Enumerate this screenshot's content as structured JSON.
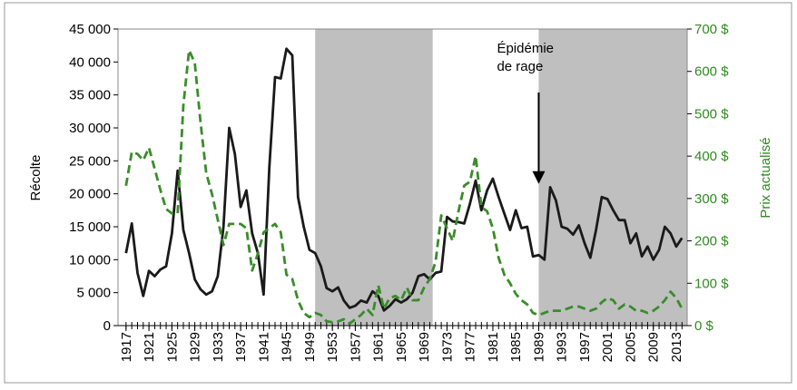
{
  "chart_data": {
    "type": "line",
    "x": [
      1917,
      1918,
      1919,
      1920,
      1921,
      1922,
      1923,
      1924,
      1925,
      1926,
      1927,
      1928,
      1929,
      1930,
      1931,
      1932,
      1933,
      1934,
      1935,
      1936,
      1937,
      1938,
      1939,
      1940,
      1941,
      1942,
      1943,
      1944,
      1945,
      1946,
      1947,
      1948,
      1949,
      1950,
      1951,
      1952,
      1953,
      1954,
      1955,
      1956,
      1957,
      1958,
      1959,
      1960,
      1961,
      1962,
      1963,
      1964,
      1965,
      1966,
      1967,
      1968,
      1969,
      1970,
      1971,
      1972,
      1973,
      1974,
      1975,
      1976,
      1977,
      1978,
      1979,
      1980,
      1981,
      1982,
      1983,
      1984,
      1985,
      1986,
      1987,
      1988,
      1989,
      1990,
      1991,
      1992,
      1993,
      1994,
      1995,
      1996,
      1997,
      1998,
      1999,
      2000,
      2001,
      2002,
      2003,
      2004,
      2005,
      2006,
      2007,
      2008,
      2009,
      2010,
      2011,
      2012,
      2013,
      2014
    ],
    "series": [
      {
        "color": "#1a1a1a",
        "values": [
          11000,
          15500,
          8000,
          4500,
          8300,
          7500,
          8500,
          9000,
          14000,
          23500,
          14500,
          11000,
          7000,
          5500,
          4700,
          5200,
          7500,
          15000,
          30000,
          26000,
          18000,
          20500,
          14000,
          11000,
          4700,
          24000,
          37700,
          37500,
          42000,
          41000,
          19500,
          15000,
          11500,
          11000,
          9000,
          5700,
          5200,
          5800,
          3800,
          2700,
          3000,
          3800,
          3500,
          5200,
          4500,
          2300,
          3000,
          4000,
          3500,
          4000,
          5000,
          7500,
          7800,
          7000,
          8000,
          8200,
          16500,
          15800,
          15700,
          15500,
          18500,
          22000,
          17500,
          20500,
          22300,
          19500,
          17000,
          14500,
          17500,
          14800,
          15000,
          10500,
          10700,
          10000,
          21000,
          19000,
          15000,
          14700,
          13800,
          15200,
          12500,
          10300,
          14500,
          19500,
          19200,
          17500,
          16000,
          16000,
          12500,
          14000,
          10500,
          12000,
          10000,
          11500,
          15000,
          14000,
          12000,
          13300
        ]
      },
      {
        "color": "#3a8c2a",
        "axis": "y2",
        "dashed": true,
        "values": [
          330,
          410,
          405,
          390,
          420,
          370,
          320,
          275,
          265,
          265,
          520,
          650,
          620,
          480,
          360,
          310,
          250,
          190,
          240,
          240,
          240,
          230,
          130,
          170,
          220,
          230,
          240,
          220,
          120,
          110,
          60,
          30,
          20,
          30,
          25,
          10,
          8,
          10,
          15,
          5,
          15,
          25,
          40,
          25,
          95,
          40,
          65,
          70,
          60,
          90,
          60,
          60,
          90,
          110,
          150,
          260,
          230,
          200,
          270,
          330,
          340,
          400,
          280,
          270,
          230,
          160,
          120,
          100,
          75,
          60,
          50,
          30,
          25,
          30,
          35,
          35,
          35,
          40,
          45,
          45,
          40,
          35,
          40,
          55,
          65,
          60,
          40,
          50,
          45,
          35,
          35,
          30,
          35,
          45,
          60,
          80,
          65,
          40
        ]
      }
    ],
    "xlim": [
      1915.6,
      2014.9
    ],
    "xticks": [
      1917,
      1921,
      1925,
      1929,
      1933,
      1937,
      1941,
      1945,
      1949,
      1953,
      1957,
      1961,
      1965,
      1969,
      1973,
      1977,
      1981,
      1985,
      1989,
      1993,
      1997,
      2001,
      2005,
      2009,
      2013
    ],
    "ylim": [
      0,
      45000
    ],
    "yticks": [
      0,
      {
        "value": 5000,
        "label": "5 000"
      },
      {
        "value": 10000,
        "label": "10 000"
      },
      {
        "value": 15000,
        "label": "15 000"
      },
      {
        "value": 20000,
        "label": "20 000"
      },
      {
        "value": 25000,
        "label": "25 000"
      },
      {
        "value": 30000,
        "label": "30 000"
      },
      {
        "value": 35000,
        "label": "35 000"
      },
      {
        "value": 40000,
        "label": "40 000"
      },
      {
        "value": 45000,
        "label": "45 000"
      }
    ],
    "y2lim": [
      0,
      700
    ],
    "y2ticks": [
      {
        "value": 0,
        "label": "0 $"
      },
      {
        "value": 100,
        "label": "100 $"
      },
      {
        "value": 200,
        "label": "200 $"
      },
      {
        "value": 300,
        "label": "300 $"
      },
      {
        "value": 400,
        "label": "400 $"
      },
      {
        "value": 500,
        "label": "500 $"
      },
      {
        "value": 600,
        "label": "600 $"
      },
      {
        "value": 700,
        "label": "700 $"
      }
    ],
    "y2_color": "#2e8b1e",
    "ylabel": "Récolte",
    "y2label": "Prix actualisé",
    "shaded_ranges": [
      [
        1950,
        1970.5
      ],
      [
        1989,
        2014.9
      ]
    ],
    "shade_color": "#bfbfbf",
    "annotation": {
      "lines": [
        "Épidémie",
        "de rage"
      ],
      "x": 1989,
      "y": 21500
    }
  }
}
